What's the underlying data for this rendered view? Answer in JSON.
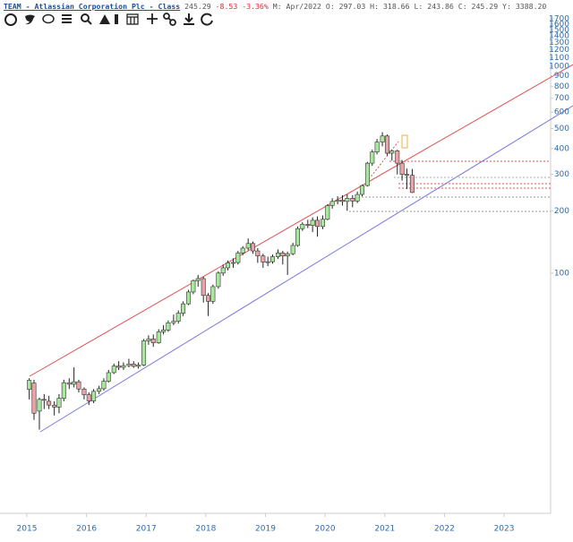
{
  "header": {
    "symbol": "TEAM - Atlassian Corporation Plc - Class",
    "last": "245.29",
    "change": "-8.53",
    "change_pct": "-3.36%",
    "info": "M: Apr/2022 O: 297.03 H: 318.66 L: 243.86 C: 245.29 Y: 3388.20"
  },
  "chart_data": {
    "type": "candlestick",
    "log_scale": true,
    "up_color": "#a8e89c",
    "down_color": "#e8a4a8",
    "x": [
      2015.04,
      2015.12,
      2015.21,
      2015.29,
      2015.37,
      2015.46,
      2015.54,
      2015.62,
      2015.71,
      2015.79,
      2015.87,
      2015.96,
      2016.04,
      2016.12,
      2016.21,
      2016.29,
      2016.37,
      2016.46,
      2016.54,
      2016.62,
      2016.71,
      2016.79,
      2016.87,
      2016.96,
      2017.04,
      2017.12,
      2017.21,
      2017.29,
      2017.37,
      2017.46,
      2017.54,
      2017.62,
      2017.71,
      2017.79,
      2017.87,
      2017.96,
      2018.04,
      2018.12,
      2018.21,
      2018.29,
      2018.37,
      2018.46,
      2018.54,
      2018.62,
      2018.71,
      2018.79,
      2018.87,
      2018.96,
      2019.04,
      2019.12,
      2019.21,
      2019.29,
      2019.37,
      2019.46,
      2019.54,
      2019.62,
      2019.71,
      2019.79,
      2019.87,
      2019.96,
      2020.04,
      2020.12,
      2020.21,
      2020.29,
      2020.37,
      2020.46,
      2020.54,
      2020.62,
      2020.71,
      2020.79,
      2020.87,
      2020.96,
      2021.04,
      2021.12,
      2021.21,
      2021.29,
      2021.37,
      2021.46
    ],
    "open": [
      27.4,
      29.4,
      21.5,
      24.5,
      24,
      23,
      22.5,
      24.8,
      29.5,
      29,
      29.8,
      27.5,
      25.8,
      24.1,
      26.8,
      27.6,
      30,
      33,
      35.5,
      35,
      35.7,
      36.3,
      35.4,
      35.9,
      47,
      48,
      46,
      52,
      53,
      57.5,
      58.5,
      64,
      71,
      81,
      92,
      94,
      78,
      73,
      86,
      100,
      106,
      112,
      112.5,
      125,
      132,
      139,
      128,
      121,
      113,
      113.5,
      120,
      125,
      121,
      124,
      136,
      164,
      172,
      170,
      180,
      168,
      182,
      212,
      222,
      225,
      222,
      230,
      223,
      240,
      265,
      340,
      385,
      430,
      460,
      380,
      390,
      340,
      300,
      297.03
    ],
    "high": [
      31,
      30.5,
      25,
      26,
      25.5,
      24,
      26,
      30.5,
      31,
      35,
      30.5,
      28,
      26.5,
      27.5,
      28.5,
      31,
      34,
      36.5,
      37.5,
      37,
      38.5,
      37.5,
      37,
      48,
      50,
      50.5,
      53.5,
      56,
      59,
      63,
      66,
      73,
      83,
      93,
      98,
      96,
      80,
      88,
      102,
      110,
      115,
      118,
      128,
      135,
      147,
      142,
      132,
      124,
      120,
      123,
      130,
      128,
      127,
      140,
      168,
      176,
      181,
      186,
      188,
      190,
      215,
      230,
      235,
      238,
      240,
      238,
      248,
      268,
      345,
      395,
      445,
      480,
      468,
      395,
      395,
      352,
      320,
      318.66
    ],
    "low": [
      24.5,
      19.5,
      17.5,
      22,
      22,
      20.5,
      21,
      24,
      27.5,
      28,
      26.5,
      24.5,
      23,
      23.5,
      26,
      27,
      29.5,
      32.5,
      34,
      34,
      35,
      34.8,
      34.5,
      35.5,
      45,
      44,
      45.5,
      50.5,
      52,
      56,
      57,
      62,
      70,
      79,
      86,
      72,
      62,
      71,
      84,
      97,
      103,
      106,
      110,
      122,
      129,
      124,
      112,
      106,
      108,
      111,
      117,
      110,
      98,
      122,
      134,
      160,
      165,
      158,
      150,
      163,
      180,
      205,
      215,
      212,
      200,
      208,
      218,
      235,
      262,
      330,
      375,
      410,
      370,
      350,
      300,
      280,
      255,
      243.86
    ],
    "close": [
      30.3,
      21,
      24.5,
      24.3,
      23,
      22.5,
      24.8,
      29.5,
      29,
      29.8,
      27.5,
      25.8,
      24.1,
      26.8,
      27.6,
      30,
      33,
      35.5,
      35,
      35.7,
      36.3,
      35.4,
      35.9,
      47,
      48,
      46,
      52,
      53,
      57.5,
      58.5,
      64,
      71,
      81,
      92,
      94,
      78,
      73,
      86,
      100,
      106,
      112,
      112.5,
      125,
      132,
      139,
      128,
      121,
      113,
      113.5,
      120,
      125,
      121,
      124,
      136,
      164,
      172,
      170,
      180,
      168,
      182,
      212,
      222,
      225,
      222,
      230,
      223,
      240,
      265,
      340,
      385,
      430,
      460,
      380,
      390,
      340,
      300,
      297,
      245.29
    ],
    "ylim": [
      7.1,
      1765
    ],
    "yticks": [
      100,
      200,
      300,
      400,
      500,
      600,
      700,
      800,
      900,
      1000,
      1100,
      1200,
      1300,
      1400,
      1500,
      1600,
      1700
    ],
    "xlim": [
      2014.55,
      2023.78
    ],
    "xticks": [
      2015,
      2016,
      2017,
      2018,
      2019,
      2020,
      2021,
      2022,
      2023
    ]
  }
}
